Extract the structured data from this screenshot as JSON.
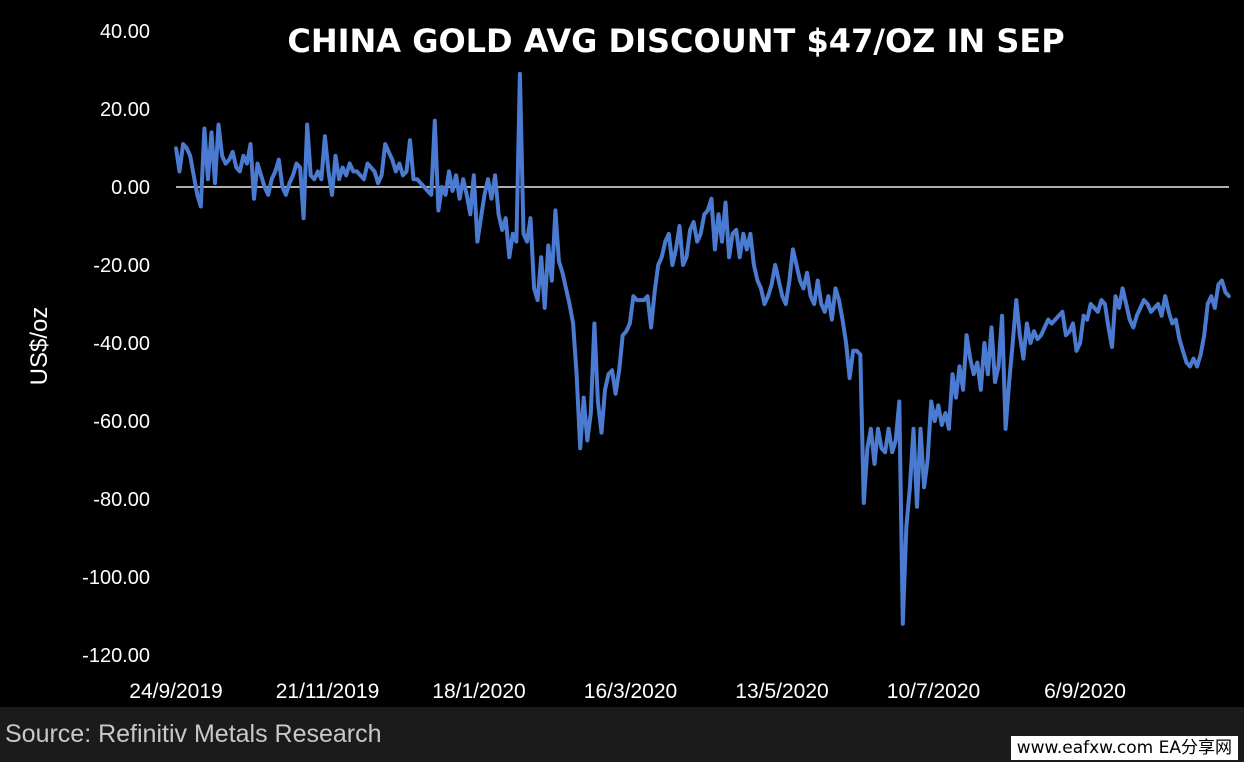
{
  "chart_data": {
    "type": "line",
    "title": "CHINA GOLD AVG DISCOUNT $47/OZ IN SEP",
    "ylabel": "US$/oz",
    "xlabel": "",
    "ylim": [
      -120,
      40
    ],
    "y_ticks": [
      "40.00",
      "20.00",
      "0.00",
      "-20.00",
      "-40.00",
      "-60.00",
      "-80.00",
      "-100.00",
      "-120.00"
    ],
    "x_ticks": [
      "24/9/2019",
      "21/11/2019",
      "18/1/2020",
      "16/3/2020",
      "13/5/2020",
      "10/7/2020",
      "6/9/2020"
    ],
    "grid": false,
    "legend": "none",
    "line_color": "#4a7bd0",
    "series": [
      {
        "values": [
          10,
          4,
          11,
          10,
          8,
          3,
          -2,
          -5,
          15,
          2,
          14,
          1,
          16,
          8,
          6,
          7,
          9,
          5,
          4,
          8,
          6,
          11,
          -3,
          6,
          3,
          0,
          -2,
          2,
          4,
          7,
          0,
          -2,
          1,
          3,
          6,
          5,
          -8,
          16,
          3,
          2,
          4,
          2,
          13,
          4,
          -2,
          8,
          2,
          5,
          3,
          6,
          4,
          4,
          3,
          2,
          6,
          5,
          4,
          1,
          3,
          11,
          9,
          7,
          4,
          6,
          3,
          4,
          12,
          2,
          2,
          1,
          0,
          -1,
          -2,
          17,
          -6,
          0,
          -2,
          4,
          -1,
          3,
          -3,
          2,
          -2,
          -7,
          3,
          -14,
          -8,
          -2,
          2,
          -3,
          3,
          -7,
          -11,
          -8,
          -18,
          -12,
          -14,
          29,
          -12,
          -14,
          -8,
          -26,
          -29,
          -18,
          -31,
          -15,
          -24,
          -6,
          -19,
          -22,
          -26,
          -30,
          -35,
          -48,
          -67,
          -54,
          -65,
          -58,
          -35,
          -55,
          -63,
          -52,
          -48,
          -47,
          -53,
          -47,
          -38,
          -37,
          -35,
          -28,
          -29,
          -29,
          -29,
          -28,
          -36,
          -27,
          -20,
          -18,
          -14,
          -12,
          -20,
          -16,
          -10,
          -20,
          -18,
          -11,
          -9,
          -14,
          -12,
          -7,
          -6,
          -3,
          -16,
          -7,
          -14,
          -4,
          -18,
          -12,
          -11,
          -18,
          -12,
          -16,
          -12,
          -20,
          -24,
          -26,
          -30,
          -28,
          -25,
          -20,
          -24,
          -28,
          -30,
          -24,
          -16,
          -20,
          -24,
          -26,
          -22,
          -28,
          -30,
          -24,
          -30,
          -32,
          -28,
          -34,
          -26,
          -29,
          -34,
          -40,
          -49,
          -42,
          -42,
          -43,
          -81,
          -67,
          -62,
          -71,
          -62,
          -67,
          -68,
          -62,
          -68,
          -65,
          -55,
          -112,
          -87,
          -77,
          -62,
          -82,
          -62,
          -77,
          -70,
          -55,
          -60,
          -56,
          -61,
          -58,
          -62,
          -48,
          -54,
          -46,
          -52,
          -38,
          -44,
          -48,
          -45,
          -52,
          -40,
          -48,
          -36,
          -50,
          -46,
          -33,
          -62,
          -50,
          -40,
          -29,
          -38,
          -44,
          -35,
          -40,
          -37,
          -39,
          -38,
          -36,
          -34,
          -35,
          -34,
          -33,
          -32,
          -38,
          -37,
          -35,
          -42,
          -40,
          -33,
          -34,
          -30,
          -31,
          -32,
          -29,
          -30,
          -36,
          -41,
          -28,
          -31,
          -26,
          -30,
          -34,
          -36,
          -33,
          -31,
          -29,
          -30,
          -32,
          -31,
          -30,
          -33,
          -28,
          -32,
          -35,
          -34,
          -39,
          -42,
          -45,
          -46,
          -44,
          -46,
          -43,
          -38,
          -30,
          -28,
          -31,
          -25,
          -24,
          -27,
          -28
        ]
      }
    ]
  },
  "footer": {
    "source": "Source: Refinitiv Metals Research",
    "watermark": "www.eafxw.com  EA分享网"
  }
}
